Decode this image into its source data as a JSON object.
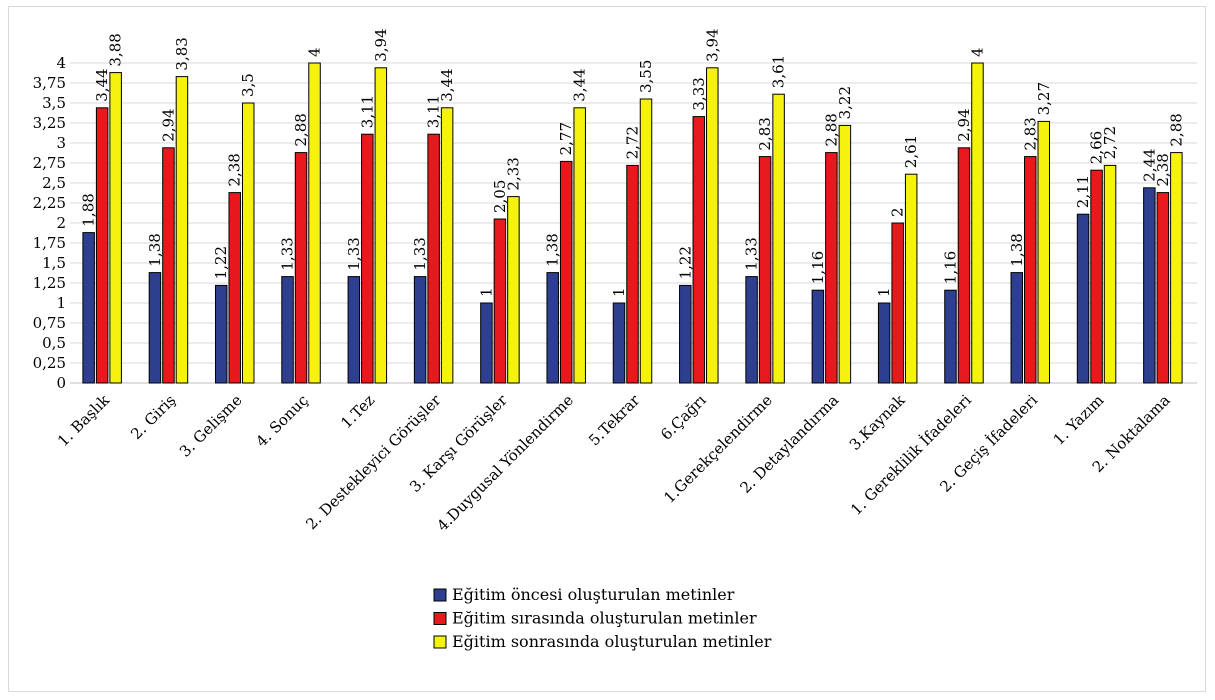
{
  "chart_data": {
    "type": "bar",
    "categories": [
      "1. Başlık",
      "2. Giriş",
      "3. Gelişme",
      "4. Sonuç",
      "1.Tez",
      "2. Destekleyici Görüşler",
      "3. Karşı Görüşler",
      "4.Duygusal Yönlendirme",
      "5.Tekrar",
      "6.Çağrı",
      "1.Gerekçelendirme",
      "2. Detaylandırma",
      "3.Kaynak",
      "1. Gereklilik İfadeleri",
      "2. Geçiş İfadeleri",
      "1. Yazım",
      "2. Noktalama"
    ],
    "series": [
      {
        "name": "Eğitim öncesi oluşturulan metinler",
        "color": "#2e3f8f",
        "values": [
          1.88,
          1.38,
          1.22,
          1.33,
          1.33,
          1.33,
          1,
          1.38,
          1,
          1.22,
          1.33,
          1.16,
          1,
          1.16,
          1.38,
          2.11,
          2.44
        ],
        "labels": [
          "1,88",
          "1,38",
          "1,22",
          "1,33",
          "1,33",
          "1,33",
          "1",
          "1,38",
          "1",
          "1,22",
          "1,33",
          "1,16",
          "1",
          "1,16",
          "1,38",
          "2,11",
          "2,44"
        ]
      },
      {
        "name": "Eğitim sırasında oluşturulan metinler",
        "color": "#e8191c",
        "values": [
          3.44,
          2.94,
          2.38,
          2.88,
          3.11,
          3.11,
          2.05,
          2.77,
          2.72,
          3.33,
          2.83,
          2.88,
          2,
          2.94,
          2.83,
          2.66,
          2.38
        ],
        "labels": [
          "3,44",
          "2,94",
          "2,38",
          "2,88",
          "3,11",
          "3,11",
          "2,05",
          "2,77",
          "2,72",
          "3,33",
          "2,83",
          "2,88",
          "2",
          "2,94",
          "2,83",
          "2,66",
          "2,38"
        ]
      },
      {
        "name": "Eğitim sonrasında oluşturulan metinler",
        "color": "#f5f20f",
        "values": [
          3.88,
          3.83,
          3.5,
          4,
          3.94,
          3.44,
          2.33,
          3.44,
          3.55,
          3.94,
          3.61,
          3.22,
          2.61,
          4,
          3.27,
          2.72,
          2.88
        ],
        "labels": [
          "3,88",
          "3,83",
          "3,5",
          "4",
          "3,94",
          "3,44",
          "2,33",
          "3,44",
          "3,55",
          "3,94",
          "3,61",
          "3,22",
          "2,61",
          "4",
          "3,27",
          "2,72",
          "2,88"
        ]
      }
    ],
    "ylim": [
      0,
      4
    ],
    "yticks": [
      0,
      0.25,
      0.5,
      0.75,
      1,
      1.25,
      1.5,
      1.75,
      2,
      2.25,
      2.5,
      2.75,
      3,
      3.25,
      3.5,
      3.75,
      4
    ],
    "ytick_labels": [
      "0",
      "0,25",
      "0,5",
      "0,75",
      "1",
      "1,25",
      "1,5",
      "1,75",
      "2",
      "2,25",
      "2,5",
      "2,75",
      "3",
      "3,25",
      "3,5",
      "3,75",
      "4"
    ],
    "grid": true,
    "legend_position": "bottom-center",
    "title": "",
    "xlabel": "",
    "ylabel": ""
  }
}
